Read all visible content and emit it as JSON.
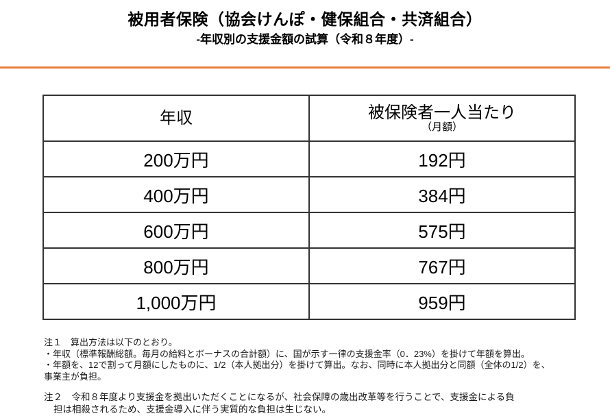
{
  "colors": {
    "accent": "#e87d3c",
    "table_border": "#333333"
  },
  "header": {
    "title": "被用者保険（協会けんぽ・健保組合・共済組合）",
    "subtitle": "-年収別の支援金額の試算（令和８年度）-"
  },
  "table": {
    "col1_header": "年収",
    "col2_header_main": "被保険者一人当たり",
    "col2_header_sub": "（月額）",
    "rows": [
      {
        "income": "200万円",
        "amount": "192円"
      },
      {
        "income": "400万円",
        "amount": "384円"
      },
      {
        "income": "600万円",
        "amount": "575円"
      },
      {
        "income": "800万円",
        "amount": "767円"
      },
      {
        "income": "1,000万円",
        "amount": "959円"
      }
    ]
  },
  "notes": {
    "note1_lines": [
      "注１　算出方法は以下のとおり。",
      "・年収（標準報酬総額。毎月の給料とボーナスの合計額）に、国が示す一律の支援金率（0．23%）を掛けて年額を算出。",
      "・年額を、12で割って月額にしたものに、1/2（本人拠出分）を掛けて算出。なお、同時に本人拠出分と同額（全体の1/2）を、",
      "事業主が負担。"
    ],
    "note2_lines": [
      "注２　令和８年度より支援金を拠出いただくことになるが、社会保障の歳出改革等を行うことで、支援金による負",
      "担は相殺されるため、支援金導入に伴う実質的な負担は生じない。"
    ]
  }
}
